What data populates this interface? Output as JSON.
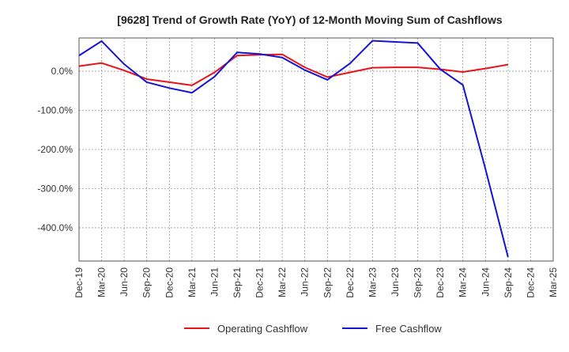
{
  "chart_data": {
    "type": "line",
    "title": "[9628]  Trend of Growth Rate (YoY) of 12-Month Moving Sum of Cashflows",
    "xlabel": "",
    "ylabel": "",
    "categories": [
      "Dec-19",
      "Mar-20",
      "Jun-20",
      "Sep-20",
      "Dec-20",
      "Mar-21",
      "Jun-21",
      "Sep-21",
      "Dec-21",
      "Mar-22",
      "Jun-22",
      "Sep-22",
      "Dec-22",
      "Mar-23",
      "Jun-23",
      "Sep-23",
      "Dec-23",
      "Mar-24",
      "Jun-24",
      "Sep-24",
      "Dec-24",
      "Mar-25"
    ],
    "y_ticks": [
      0,
      -100,
      -200,
      -300,
      -400
    ],
    "y_tick_labels": [
      "0.0%",
      "-100.0%",
      "-200.0%",
      "-300.0%",
      "-400.0%"
    ],
    "ylim": [
      -485,
      85
    ],
    "grid": true,
    "legend_position": "bottom",
    "series": [
      {
        "name": "Operating Cashflow",
        "color": "#e8141b",
        "values": [
          13,
          21,
          2,
          -20,
          -28,
          -36,
          -3,
          40,
          42,
          43,
          10,
          -15,
          -3,
          9,
          10,
          10,
          5,
          -2,
          7,
          17,
          null,
          null
        ]
      },
      {
        "name": "Free Cashflow",
        "color": "#1414d2",
        "values": [
          40,
          77,
          18,
          -28,
          -43,
          -55,
          -14,
          48,
          44,
          35,
          3,
          -22,
          20,
          78,
          75,
          72,
          5,
          -35,
          -250,
          -475,
          null,
          null
        ]
      }
    ]
  }
}
